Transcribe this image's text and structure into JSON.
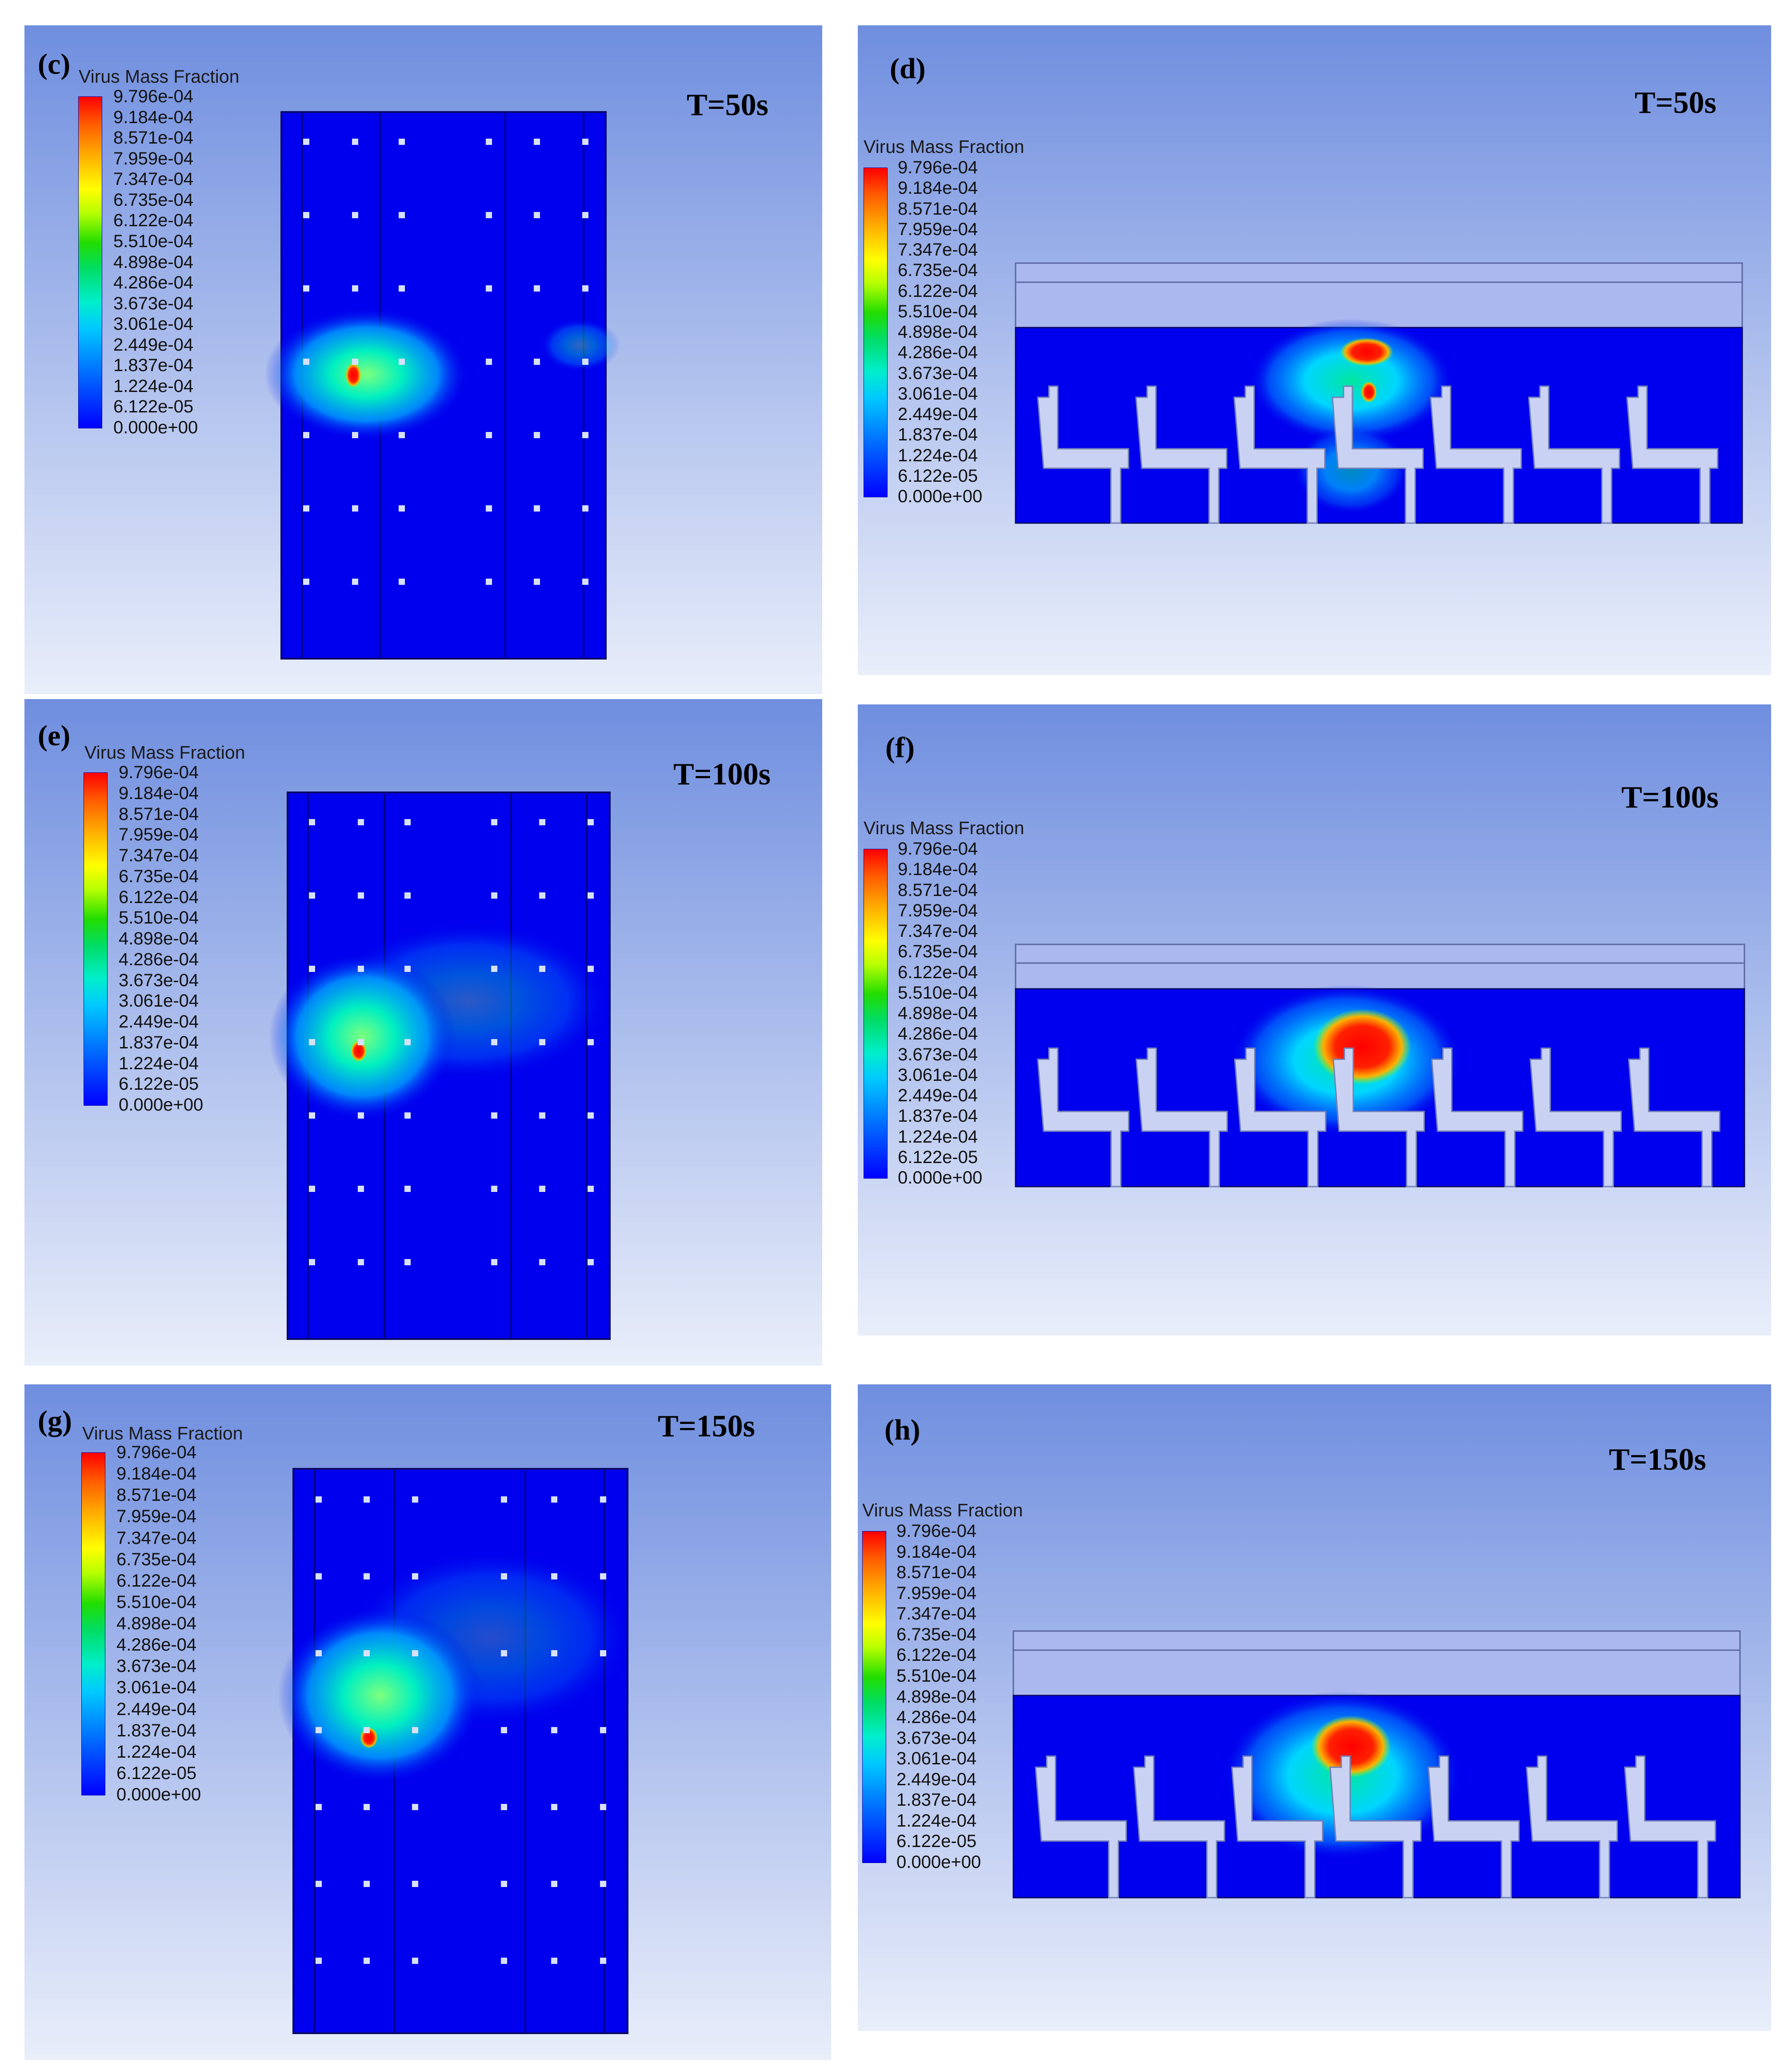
{
  "legend": {
    "title": "Virus Mass Fraction",
    "ticks": [
      "9.796e-04",
      "9.184e-04",
      "8.571e-04",
      "7.959e-04",
      "7.347e-04",
      "6.735e-04",
      "6.122e-04",
      "5.510e-04",
      "4.898e-04",
      "4.286e-04",
      "3.673e-04",
      "3.061e-04",
      "2.449e-04",
      "1.837e-04",
      "1.224e-04",
      "6.122e-05",
      "0.000e+00"
    ],
    "gradient": [
      "#ff0000",
      "#ffb000",
      "#ffff00",
      "#22dd00",
      "#00eecc",
      "#00c8ff",
      "#0000ff"
    ]
  },
  "colors": {
    "background_top": "#6f8edf",
    "background_bottom": "#e9eefa",
    "domain": "#0000ee",
    "plume_core": "#ff0000"
  },
  "panels": [
    {
      "label": "(c)",
      "time": "T=50s",
      "view": "top"
    },
    {
      "label": "(d)",
      "time": "T=50s",
      "view": "side"
    },
    {
      "label": "(e)",
      "time": "T=100s",
      "view": "top"
    },
    {
      "label": "(f)",
      "time": "T=100s",
      "view": "side"
    },
    {
      "label": "(g)",
      "time": "T=150s",
      "view": "top"
    },
    {
      "label": "(h)",
      "time": "T=150s",
      "view": "side"
    }
  ]
}
